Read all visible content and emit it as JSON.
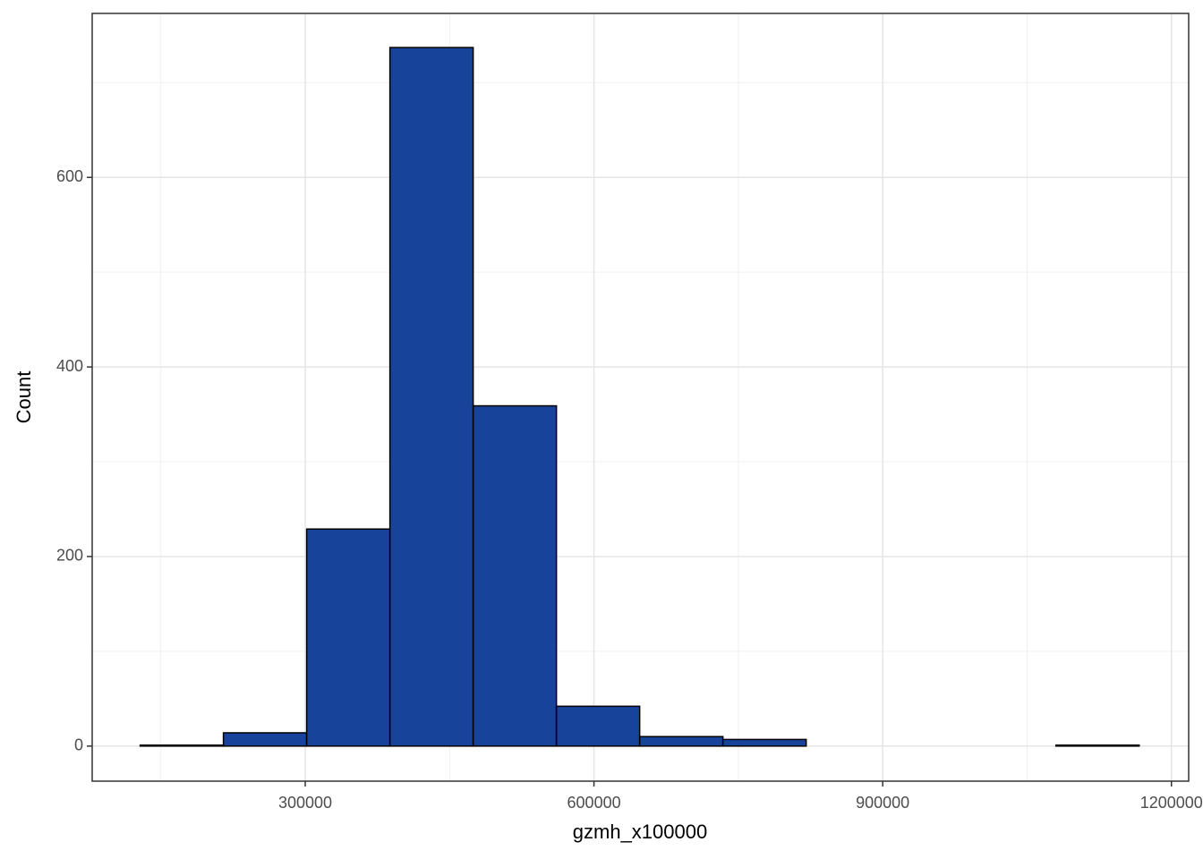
{
  "chart_data": {
    "type": "histogram",
    "x_label": "gzmh_x100000",
    "y_label": "Count",
    "bins": [
      128500,
      215000,
      301500,
      388000,
      474500,
      561000,
      647500,
      734000,
      820500,
      907000,
      993500,
      1080000,
      1166500
    ],
    "values": [
      1,
      14,
      229,
      737,
      359,
      42,
      10,
      7,
      0,
      0,
      0,
      1
    ],
    "color": "#18439a",
    "edge_color": "#000000",
    "xlim": [
      78660,
      1217910
    ],
    "ylim": [
      -37,
      773
    ],
    "xticks": [
      300000,
      600000,
      900000,
      1200000
    ],
    "yticks": [
      0,
      200,
      400,
      600
    ],
    "x_minor_grid": [
      150000,
      450000,
      750000,
      1050000
    ],
    "y_minor_grid": [
      100,
      300,
      500,
      700
    ],
    "grid": true
  }
}
